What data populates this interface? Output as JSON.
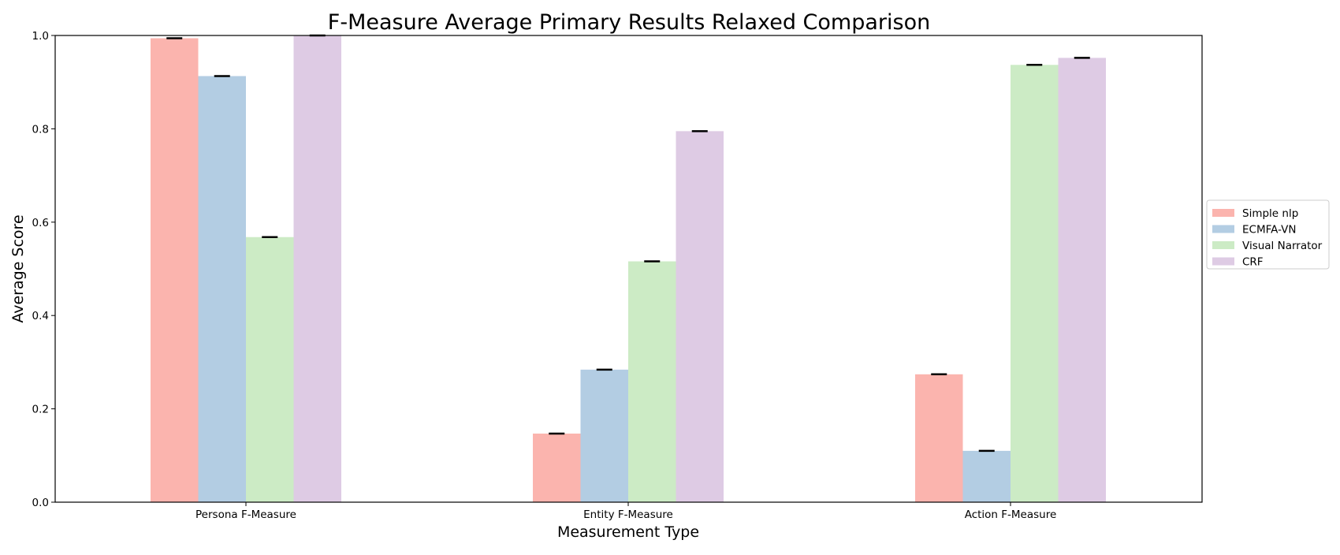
{
  "chart_data": {
    "type": "bar",
    "title": "F-Measure Average Primary Results Relaxed Comparison",
    "xlabel": "Measurement Type",
    "ylabel": "Average Score",
    "ylim": [
      0,
      1.0
    ],
    "yticks": [
      "0.0",
      "0.2",
      "0.4",
      "0.6",
      "0.8",
      "1.0"
    ],
    "categories": [
      "Persona F-Measure",
      "Entity F-Measure",
      "Action F-Measure"
    ],
    "series": [
      {
        "name": "Simple nlp",
        "color": "#fbb4ae",
        "values": [
          0.994,
          0.147,
          0.274
        ]
      },
      {
        "name": "ECMFA-VN",
        "color": "#b3cde3",
        "values": [
          0.913,
          0.284,
          0.11
        ]
      },
      {
        "name": "Visual Narrator",
        "color": "#ccebc5",
        "values": [
          0.568,
          0.516,
          0.937
        ]
      },
      {
        "name": "CRF",
        "color": "#decbe4",
        "values": [
          1.0,
          0.795,
          0.952
        ]
      }
    ],
    "grid": false,
    "legend_position": "right"
  }
}
